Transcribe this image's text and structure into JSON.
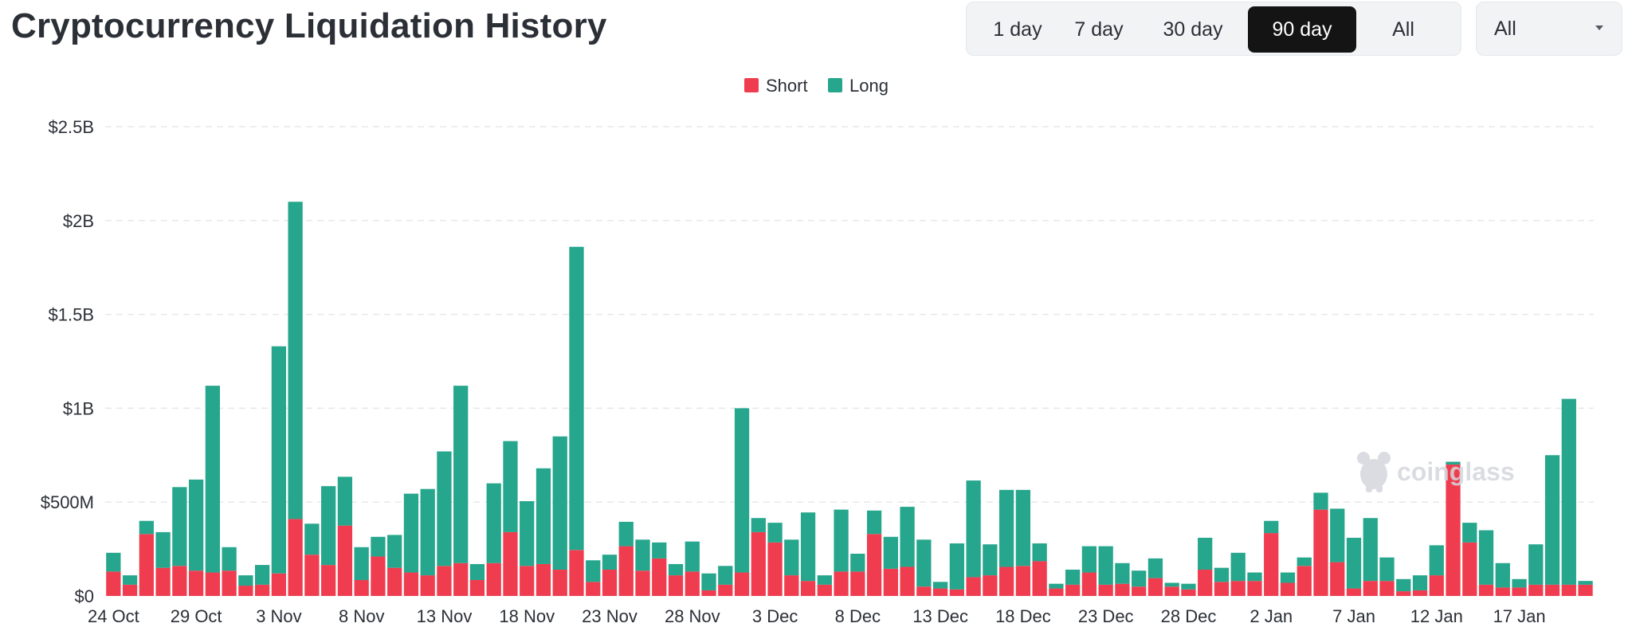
{
  "header": {
    "title": "Cryptocurrency Liquidation History"
  },
  "range_tabs": [
    {
      "label": "1 day",
      "active": false
    },
    {
      "label": "7 day",
      "active": false
    },
    {
      "label": "30 day",
      "active": false
    },
    {
      "label": "90 day",
      "active": true
    },
    {
      "label": "All",
      "active": false
    }
  ],
  "asset_select": {
    "value": "All",
    "icon": "chevron-down-icon"
  },
  "watermark": {
    "text": "coinglass",
    "icon": "coinglass-logo-icon"
  },
  "colors": {
    "short": "#ef3d4f",
    "long": "#26a68c",
    "grid": "#e6e8ea",
    "axis_text": "#2b2f36",
    "active_tab_bg": "#141414"
  },
  "chart_data": {
    "type": "bar",
    "stacked": true,
    "title": "",
    "xlabel": "",
    "ylabel": "",
    "ylim": [
      0,
      2500000000
    ],
    "yticks": [
      {
        "value": 0,
        "label": "$0"
      },
      {
        "value": 500000000,
        "label": "$500M"
      },
      {
        "value": 1000000000,
        "label": "$1B"
      },
      {
        "value": 1500000000,
        "label": "$1.5B"
      },
      {
        "value": 2000000000,
        "label": "$2B"
      },
      {
        "value": 2500000000,
        "label": "$2.5B"
      }
    ],
    "grid": true,
    "legend_position": "top-center",
    "x_start_label": "24 Oct",
    "xticks": [
      {
        "index": 0,
        "label": "24 Oct"
      },
      {
        "index": 5,
        "label": "29 Oct"
      },
      {
        "index": 10,
        "label": "3 Nov"
      },
      {
        "index": 15,
        "label": "8 Nov"
      },
      {
        "index": 20,
        "label": "13 Nov"
      },
      {
        "index": 25,
        "label": "18 Nov"
      },
      {
        "index": 30,
        "label": "23 Nov"
      },
      {
        "index": 35,
        "label": "28 Nov"
      },
      {
        "index": 40,
        "label": "3 Dec"
      },
      {
        "index": 45,
        "label": "8 Dec"
      },
      {
        "index": 50,
        "label": "13 Dec"
      },
      {
        "index": 55,
        "label": "18 Dec"
      },
      {
        "index": 60,
        "label": "23 Dec"
      },
      {
        "index": 65,
        "label": "28 Dec"
      },
      {
        "index": 70,
        "label": "2 Jan"
      },
      {
        "index": 75,
        "label": "7 Jan"
      },
      {
        "index": 80,
        "label": "12 Jan"
      },
      {
        "index": 85,
        "label": "17 Jan"
      }
    ],
    "series": [
      {
        "name": "Short",
        "values": [
          130000000,
          60000000,
          330000000,
          150000000,
          160000000,
          135000000,
          125000000,
          135000000,
          55000000,
          60000000,
          120000000,
          410000000,
          220000000,
          165000000,
          375000000,
          85000000,
          210000000,
          150000000,
          125000000,
          110000000,
          160000000,
          175000000,
          85000000,
          175000000,
          340000000,
          160000000,
          170000000,
          140000000,
          245000000,
          75000000,
          140000000,
          265000000,
          135000000,
          200000000,
          110000000,
          130000000,
          30000000,
          60000000,
          125000000,
          340000000,
          285000000,
          110000000,
          80000000,
          60000000,
          130000000,
          130000000,
          330000000,
          145000000,
          155000000,
          50000000,
          40000000,
          35000000,
          100000000,
          110000000,
          155000000,
          160000000,
          185000000,
          40000000,
          60000000,
          125000000,
          60000000,
          65000000,
          50000000,
          95000000,
          50000000,
          35000000,
          140000000,
          75000000,
          80000000,
          80000000,
          335000000,
          70000000,
          160000000,
          460000000,
          180000000,
          40000000,
          80000000,
          80000000,
          25000000,
          30000000,
          110000000,
          700000000,
          285000000,
          60000000,
          45000000,
          45000000,
          60000000,
          60000000,
          60000000,
          60000000
        ]
      },
      {
        "name": "Long",
        "values": [
          100000000,
          50000000,
          70000000,
          190000000,
          420000000,
          485000000,
          995000000,
          125000000,
          55000000,
          105000000,
          1210000000,
          1690000000,
          165000000,
          420000000,
          260000000,
          175000000,
          105000000,
          175000000,
          420000000,
          460000000,
          610000000,
          945000000,
          85000000,
          425000000,
          485000000,
          345000000,
          510000000,
          710000000,
          1615000000,
          115000000,
          80000000,
          130000000,
          165000000,
          85000000,
          60000000,
          160000000,
          90000000,
          100000000,
          875000000,
          75000000,
          105000000,
          190000000,
          365000000,
          50000000,
          330000000,
          95000000,
          125000000,
          170000000,
          320000000,
          250000000,
          35000000,
          245000000,
          515000000,
          165000000,
          410000000,
          405000000,
          95000000,
          25000000,
          80000000,
          140000000,
          205000000,
          110000000,
          85000000,
          105000000,
          20000000,
          30000000,
          170000000,
          75000000,
          150000000,
          45000000,
          65000000,
          55000000,
          45000000,
          90000000,
          285000000,
          270000000,
          335000000,
          125000000,
          65000000,
          80000000,
          160000000,
          15000000,
          105000000,
          290000000,
          130000000,
          45000000,
          215000000,
          690000000,
          990000000,
          20000000
        ]
      }
    ]
  }
}
